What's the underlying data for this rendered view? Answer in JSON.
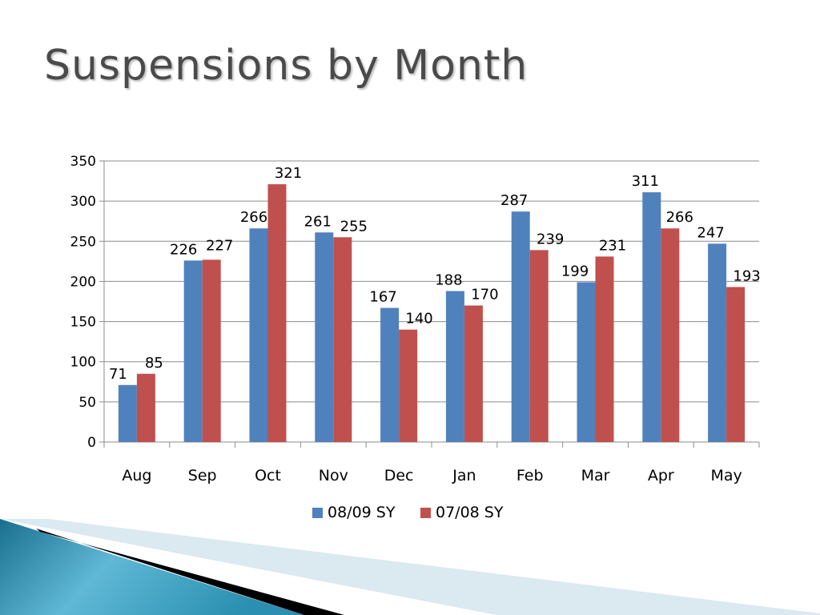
{
  "slide": {
    "title": "Suspensions by Month"
  },
  "chart_data": {
    "type": "bar",
    "title": "",
    "xlabel": "",
    "ylabel": "",
    "categories": [
      "Aug",
      "Sep",
      "Oct",
      "Nov",
      "Dec",
      "Jan",
      "Feb",
      "Mar",
      "Apr",
      "May"
    ],
    "series": [
      {
        "name": "08/09 SY",
        "color": "#4f81bd",
        "values": [
          71,
          226,
          266,
          261,
          167,
          188,
          287,
          199,
          311,
          247
        ]
      },
      {
        "name": "07/08 SY",
        "color": "#c0504d",
        "values": [
          85,
          227,
          321,
          255,
          140,
          170,
          239,
          231,
          266,
          193
        ]
      }
    ],
    "ylim": [
      0,
      350
    ],
    "yticks": [
      0,
      50,
      100,
      150,
      200,
      250,
      300,
      350
    ],
    "grid": true,
    "legend": "bottom",
    "data_labels": true
  },
  "decor": {
    "colors": [
      "#1a7fa0",
      "#5fb8d6",
      "#cfe6f0",
      "#000000"
    ]
  }
}
